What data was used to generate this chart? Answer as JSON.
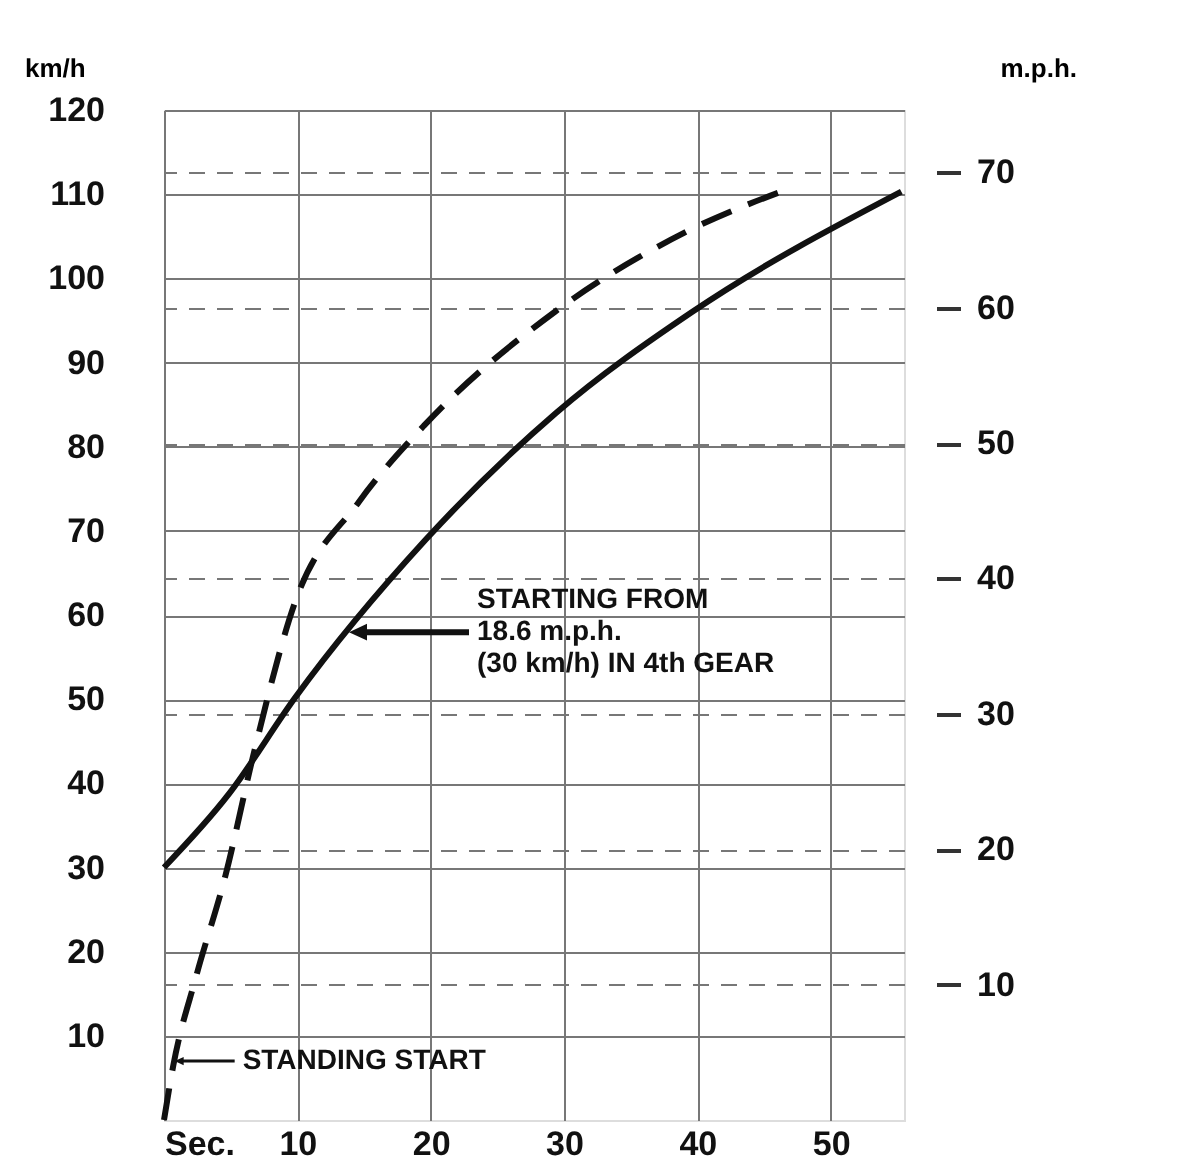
{
  "chart_data": {
    "type": "line",
    "ylabel": "km/h",
    "y2label": "m.p.h.",
    "xlim": [
      0,
      55.5
    ],
    "xticks": [
      {
        "value": 0,
        "label": "Sec."
      },
      10,
      20,
      30,
      40,
      50
    ],
    "ylim": [
      0,
      120
    ],
    "yticks": [
      10,
      20,
      30,
      40,
      50,
      60,
      70,
      80,
      90,
      100,
      110,
      120
    ],
    "y2lim": [
      0,
      74.6
    ],
    "y2ticks": [
      10,
      20,
      30,
      40,
      50,
      60,
      70
    ],
    "grid": true,
    "marker": "none",
    "series": [
      {
        "color": "#111111",
        "line_style": "solid",
        "x": [
          0,
          4.9,
          9.8,
          19.6,
          29.4,
          39.6,
          55.3
        ],
        "values": [
          30,
          38.8,
          50.1,
          68.9,
          84,
          96,
          110.3
        ]
      },
      {
        "color": "#111111",
        "line_style": "dashed",
        "x": [
          0,
          0.7,
          2.4,
          4.6,
          6.8,
          9.8,
          14.6,
          19.5,
          29.3,
          39,
          47.3
        ],
        "values": [
          0,
          6.5,
          17,
          29,
          44,
          61.4,
          73.4,
          82.5,
          96,
          105.4,
          110.9
        ]
      }
    ],
    "annotations": [
      "STARTING FROM\n18.6 m.p.h.\n(30 km/h) IN 4th GEAR",
      {
        "text": "STANDING START",
        "x": 0.8,
        "y": 7
      }
    ]
  }
}
